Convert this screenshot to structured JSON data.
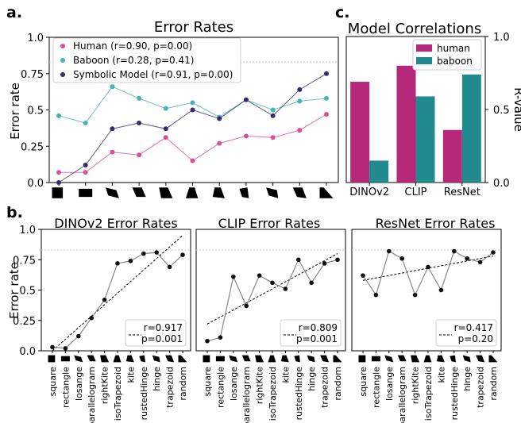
{
  "panel_labels": {
    "a": "a.",
    "b": "b.",
    "c": "c."
  },
  "shape_categories": [
    "square",
    "rectangle",
    "losange",
    "parallelogram",
    "rightKite",
    "isoTrapezoid",
    "kite",
    "rustedHinge",
    "hinge",
    "trapezoid",
    "random"
  ],
  "colors": {
    "human": "#d6509a",
    "baboon": "#45b3b9",
    "symbolic": "#3a2a6a",
    "bar_human": "#b5287a",
    "bar_baboon": "#218a8f",
    "model_points": "#111111",
    "model_line": "#888888",
    "fit_line": "#000000",
    "chance_line": "#c8c8c8"
  },
  "chart_data": [
    {
      "id": "panel-a",
      "type": "line",
      "title": "Error Rates",
      "xlabel": "",
      "ylabel": "Error rate",
      "ylim": [
        0,
        1
      ],
      "yticks": [
        "0.0",
        "0.25",
        "0.5",
        "0.75",
        "1.0"
      ],
      "categories": [
        "square",
        "rectangle",
        "losange",
        "parallelogram",
        "rightKite",
        "isoTrapezoid",
        "kite",
        "rustedHinge",
        "hinge",
        "trapezoid",
        "random"
      ],
      "chance_line": 0.83,
      "legend_position": "top-left",
      "series": [
        {
          "name": "Human (r=0.90, p=0.00)",
          "key": "human",
          "values": [
            0.07,
            0.07,
            0.21,
            0.19,
            0.31,
            0.15,
            0.27,
            0.32,
            0.31,
            0.36,
            0.47
          ]
        },
        {
          "name": "Baboon  (r=0.28, p=0.41)",
          "key": "baboon",
          "values": [
            0.46,
            0.41,
            0.66,
            0.58,
            0.51,
            0.55,
            0.45,
            0.57,
            0.5,
            0.56,
            0.58
          ]
        },
        {
          "name": "Symbolic Model  (r=0.91, p=0.00)",
          "key": "symbolic",
          "values": [
            0.0,
            0.12,
            0.37,
            0.41,
            0.37,
            0.5,
            0.44,
            0.57,
            0.46,
            0.64,
            0.75
          ]
        }
      ]
    },
    {
      "id": "panel-c",
      "type": "bar",
      "title": "Model Correlations",
      "ylabel": "R-value",
      "ylim": [
        0,
        1
      ],
      "yticks": [
        "0.0",
        "0.5",
        "1.0"
      ],
      "categories": [
        "DINOv2",
        "CLIP",
        "ResNet"
      ],
      "legend_position": "top-right",
      "series": [
        {
          "name": "human",
          "key": "bar_human",
          "values": [
            0.69,
            0.8,
            0.36
          ]
        },
        {
          "name": "baboon",
          "key": "bar_baboon",
          "values": [
            0.15,
            0.59,
            0.74
          ]
        }
      ]
    },
    {
      "id": "panel-b1",
      "type": "line",
      "title": "DINOv2 Error Rates",
      "ylabel": "Error rate",
      "ylim": [
        0,
        1
      ],
      "yticks": [
        "0.0",
        "0.25",
        "0.5",
        "0.75",
        "1.0"
      ],
      "categories": [
        "square",
        "rectangle",
        "losange",
        "parallelogram",
        "rightKite",
        "isoTrapezoid",
        "kite",
        "rustedHinge",
        "hinge",
        "trapezoid",
        "random"
      ],
      "chance_line": 0.83,
      "values": [
        0.03,
        0.02,
        0.12,
        0.27,
        0.42,
        0.72,
        0.74,
        0.8,
        0.81,
        0.69,
        0.79
      ],
      "fit": [
        0.0,
        0.95
      ],
      "annotation": [
        "r=0.917",
        "p=0.001"
      ]
    },
    {
      "id": "panel-b2",
      "type": "line",
      "title": "CLIP Error Rates",
      "ylim": [
        0,
        1
      ],
      "categories": [
        "square",
        "rectangle",
        "losange",
        "parallelogram",
        "rightKite",
        "isoTrapezoid",
        "kite",
        "rustedHinge",
        "hinge",
        "trapezoid",
        "random"
      ],
      "chance_line": 0.83,
      "values": [
        0.08,
        0.11,
        0.61,
        0.37,
        0.62,
        0.56,
        0.51,
        0.75,
        0.56,
        0.72,
        0.75
      ],
      "fit": [
        0.22,
        0.8
      ],
      "annotation": [
        "r=0.809",
        "p=0.001"
      ]
    },
    {
      "id": "panel-b3",
      "type": "line",
      "title": "ResNet  Error Rates",
      "ylim": [
        0,
        1
      ],
      "categories": [
        "square",
        "rectangle",
        "losange",
        "parallelogram",
        "rightKite",
        "isoTrapezoid",
        "kite",
        "rustedHinge",
        "hinge",
        "trapezoid",
        "random"
      ],
      "chance_line": 0.83,
      "values": [
        0.62,
        0.46,
        0.82,
        0.76,
        0.46,
        0.69,
        0.5,
        0.82,
        0.76,
        0.73,
        0.81
      ],
      "fit": [
        0.58,
        0.78
      ],
      "annotation": [
        "r=0.417",
        "p=0.20"
      ]
    }
  ]
}
